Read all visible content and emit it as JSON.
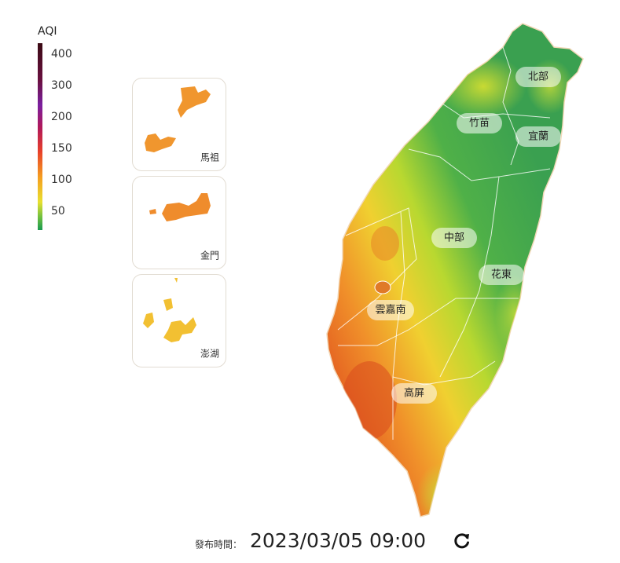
{
  "legend": {
    "title": "AQI",
    "ticks": [
      400,
      300,
      200,
      150,
      100,
      50
    ]
  },
  "insets": [
    {
      "label": "馬祖"
    },
    {
      "label": "金門"
    },
    {
      "label": "澎湖"
    }
  ],
  "regions": [
    {
      "label": "北部"
    },
    {
      "label": "竹苗"
    },
    {
      "label": "宜蘭"
    },
    {
      "label": "中部"
    },
    {
      "label": "花東"
    },
    {
      "label": "雲嘉南"
    },
    {
      "label": "高屏"
    }
  ],
  "footer": {
    "label": "發布時間：",
    "time": "2023/03/05 09:00"
  }
}
